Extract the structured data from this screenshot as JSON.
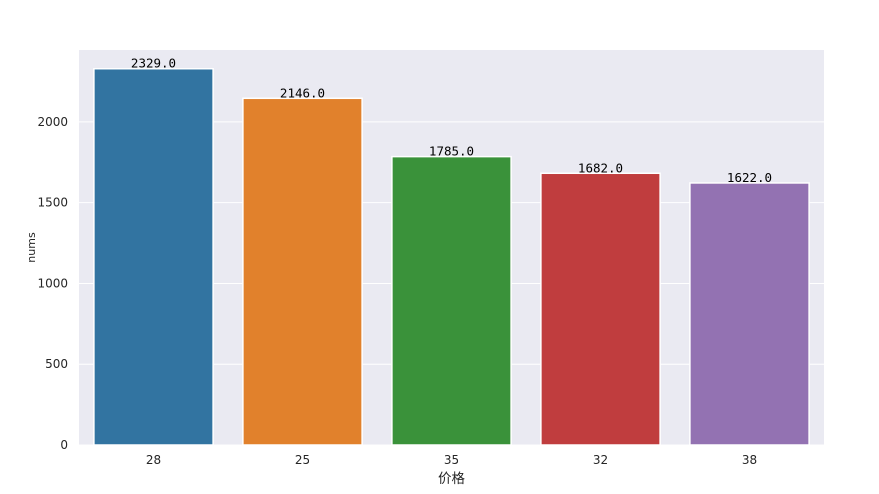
{
  "chart_data": {
    "type": "bar",
    "categories": [
      "28",
      "25",
      "35",
      "32",
      "38"
    ],
    "values": [
      2329.0,
      2146.0,
      1785.0,
      1682.0,
      1622.0
    ],
    "value_labels": [
      "2329.0",
      "2146.0",
      "1785.0",
      "1682.0",
      "1622.0"
    ],
    "colors": [
      "#3274a1",
      "#e1812c",
      "#3a923a",
      "#c03d3e",
      "#9372b2"
    ],
    "xlabel": "价格",
    "ylabel": "nums",
    "ylim": [
      0,
      2445
    ],
    "yticks": [
      0,
      500,
      1000,
      1500,
      2000
    ],
    "grid": true,
    "style": {
      "background": "#eaeaf2",
      "grid_color": "#ffffff"
    }
  }
}
